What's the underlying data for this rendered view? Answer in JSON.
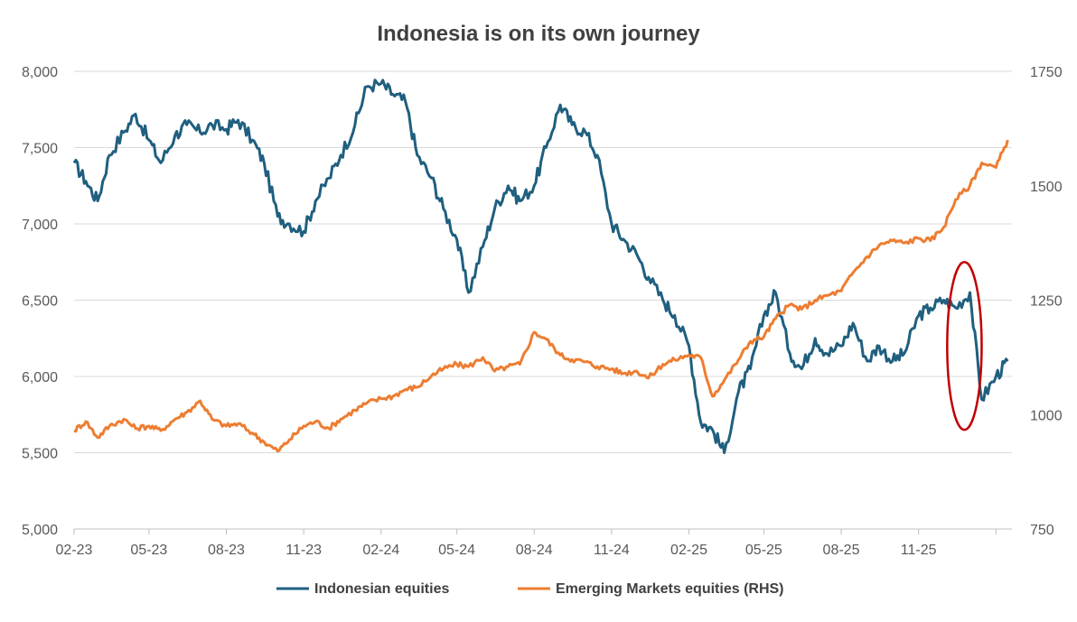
{
  "chart_data": {
    "type": "line",
    "title": "Indonesia is on its own journey",
    "x_tick_labels": [
      "02-23",
      "05-23",
      "08-23",
      "11-23",
      "02-24",
      "05-24",
      "08-24",
      "11-24",
      "02-25",
      "05-25",
      "08-25",
      "11-25"
    ],
    "y_left": {
      "ylim": [
        5000,
        8000
      ],
      "ticks": [
        "5,000",
        "5,500",
        "6,000",
        "6,500",
        "7,000",
        "7,500",
        "8,000"
      ],
      "tick_values": [
        5000,
        5500,
        6000,
        6500,
        7000,
        7500,
        8000
      ]
    },
    "y_right": {
      "ylim": [
        750,
        1750
      ],
      "ticks": [
        "750",
        "1000",
        "1250",
        "1500",
        "1750"
      ],
      "tick_values": [
        750,
        1000,
        1250,
        1500,
        1750
      ]
    },
    "grid": true,
    "legend_position": "bottom",
    "series": [
      {
        "name": "Indonesian equities",
        "axis": "left",
        "color": "#1F5F7F",
        "x": [
          "2023-02-01",
          "2023-02-15",
          "2023-03-01",
          "2023-03-15",
          "2023-04-01",
          "2023-04-15",
          "2023-05-01",
          "2023-05-15",
          "2023-06-01",
          "2023-06-15",
          "2023-07-01",
          "2023-07-15",
          "2023-08-01",
          "2023-08-15",
          "2023-09-01",
          "2023-09-15",
          "2023-10-01",
          "2023-10-15",
          "2023-11-01",
          "2023-11-15",
          "2023-12-01",
          "2023-12-15",
          "2024-01-01",
          "2024-01-15",
          "2024-02-01",
          "2024-02-15",
          "2024-03-01",
          "2024-03-15",
          "2024-04-01",
          "2024-04-15",
          "2024-05-01",
          "2024-05-15",
          "2024-06-01",
          "2024-06-15",
          "2024-07-01",
          "2024-07-15",
          "2024-08-01",
          "2024-08-15",
          "2024-09-01",
          "2024-09-15",
          "2024-10-01",
          "2024-10-15",
          "2024-11-01",
          "2024-11-15",
          "2024-12-01",
          "2024-12-15",
          "2025-01-01",
          "2025-01-15",
          "2025-02-01",
          "2025-02-15",
          "2025-03-01",
          "2025-03-15",
          "2025-04-01",
          "2025-04-15",
          "2025-05-01",
          "2025-05-15",
          "2025-06-01",
          "2025-06-15",
          "2025-07-01",
          "2025-07-15",
          "2025-08-01",
          "2025-08-15",
          "2025-09-01",
          "2025-09-15",
          "2025-10-01",
          "2025-10-15",
          "2025-11-01",
          "2025-11-15",
          "2025-12-01",
          "2025-12-15",
          "2026-01-01",
          "2026-01-15",
          "2026-02-01",
          "2026-02-15"
        ],
        "values": [
          7400,
          7280,
          7150,
          7450,
          7600,
          7720,
          7550,
          7400,
          7580,
          7650,
          7600,
          7650,
          7620,
          7680,
          7550,
          7400,
          7050,
          7000,
          6950,
          7150,
          7300,
          7450,
          7650,
          7900,
          7920,
          7850,
          7800,
          7450,
          7300,
          7100,
          6900,
          6550,
          6850,
          7100,
          7250,
          7150,
          7250,
          7500,
          7780,
          7650,
          7600,
          7450,
          7000,
          6900,
          6800,
          6650,
          6500,
          6400,
          6200,
          5700,
          5650,
          5500,
          5900,
          6050,
          6400,
          6550,
          6150,
          6050,
          6250,
          6150,
          6200,
          6350,
          6100,
          6200,
          6100,
          6150,
          6400,
          6450,
          6500,
          6450,
          6550,
          5850,
          6000,
          6100
        ]
      },
      {
        "name": "Emerging Markets equities (RHS)",
        "axis": "right",
        "color": "#ED7D31",
        "x": [
          "2023-02-01",
          "2023-02-15",
          "2023-03-01",
          "2023-03-15",
          "2023-04-01",
          "2023-04-15",
          "2023-05-01",
          "2023-05-15",
          "2023-06-01",
          "2023-06-15",
          "2023-07-01",
          "2023-07-15",
          "2023-08-01",
          "2023-08-15",
          "2023-09-01",
          "2023-09-15",
          "2023-10-01",
          "2023-10-15",
          "2023-11-01",
          "2023-11-15",
          "2023-12-01",
          "2023-12-15",
          "2024-01-01",
          "2024-01-15",
          "2024-02-01",
          "2024-02-15",
          "2024-03-01",
          "2024-03-15",
          "2024-04-01",
          "2024-04-15",
          "2024-05-01",
          "2024-05-15",
          "2024-06-01",
          "2024-06-15",
          "2024-07-01",
          "2024-07-15",
          "2024-08-01",
          "2024-08-15",
          "2024-09-01",
          "2024-09-15",
          "2024-10-01",
          "2024-10-15",
          "2024-11-01",
          "2024-11-15",
          "2024-12-01",
          "2024-12-15",
          "2025-01-01",
          "2025-01-15",
          "2025-02-01",
          "2025-02-15",
          "2025-03-01",
          "2025-03-15",
          "2025-04-01",
          "2025-04-15",
          "2025-05-01",
          "2025-05-15",
          "2025-06-01",
          "2025-06-15",
          "2025-07-01",
          "2025-07-15",
          "2025-08-01",
          "2025-08-15",
          "2025-09-01",
          "2025-09-15",
          "2025-10-01",
          "2025-10-15",
          "2025-11-01",
          "2025-11-15",
          "2025-12-01",
          "2025-12-15",
          "2026-01-01",
          "2026-01-15",
          "2026-02-01",
          "2026-02-15"
        ],
        "values": [
          965,
          985,
          950,
          975,
          990,
          970,
          975,
          965,
          990,
          1005,
          1030,
          990,
          975,
          980,
          960,
          940,
          920,
          945,
          975,
          985,
          970,
          990,
          1010,
          1025,
          1035,
          1040,
          1055,
          1060,
          1085,
          1100,
          1110,
          1105,
          1125,
          1095,
          1105,
          1110,
          1180,
          1165,
          1130,
          1120,
          1115,
          1105,
          1100,
          1090,
          1095,
          1080,
          1110,
          1120,
          1130,
          1125,
          1040,
          1075,
          1120,
          1160,
          1170,
          1210,
          1240,
          1230,
          1250,
          1260,
          1270,
          1310,
          1345,
          1370,
          1380,
          1375,
          1385,
          1380,
          1410,
          1470,
          1500,
          1550,
          1540,
          1600
        ]
      }
    ],
    "annotations": [
      {
        "type": "ellipse",
        "color": "#C00000",
        "x_center": "2025-12-25",
        "y_center_left": 6280,
        "description_values": {
          "x_start": "2025-12-05",
          "x_end": "2026-01-15",
          "y_left_min": 5650,
          "y_left_max": 6750
        }
      }
    ]
  }
}
